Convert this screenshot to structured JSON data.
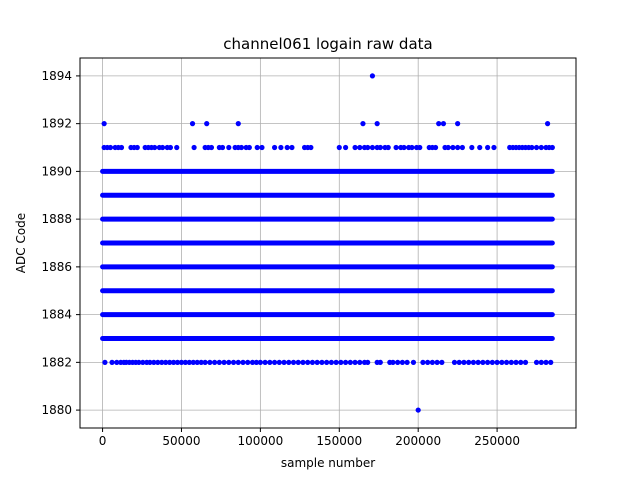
{
  "chart_data": {
    "type": "scatter",
    "title": "channel061 logain raw data",
    "xlabel": "sample number",
    "ylabel": "ADC Code",
    "xlim": [
      -14300,
      300000
    ],
    "ylim": [
      1879.25,
      1894.75
    ],
    "xticks": [
      0,
      50000,
      100000,
      150000,
      200000,
      250000
    ],
    "xtick_labels": [
      "0",
      "50000",
      "100000",
      "150000",
      "200000",
      "250000"
    ],
    "yticks": [
      1880,
      1882,
      1884,
      1886,
      1888,
      1890,
      1892,
      1894
    ],
    "ytick_labels": [
      "1880",
      "1882",
      "1884",
      "1886",
      "1888",
      "1890",
      "1892",
      "1894"
    ],
    "grid": true,
    "marker_color": "#0000ff",
    "x_extent": [
      0,
      285000
    ],
    "dense_levels": [
      1883,
      1884,
      1885,
      1886,
      1887,
      1888,
      1889,
      1890
    ],
    "sparse_levels": {
      "1882": [
        1500,
        6000,
        9000,
        11500,
        13500,
        15000,
        17000,
        19000,
        21000,
        23000,
        25500,
        28000,
        30000,
        32500,
        35000,
        37500,
        40000,
        42500,
        45000,
        47500,
        50000,
        52500,
        55000,
        57500,
        60000,
        62500,
        65000,
        68000,
        71000,
        74000,
        77000,
        80000,
        83000,
        86000,
        89000,
        92000,
        95000,
        97500,
        100000,
        103000,
        106000,
        109000,
        112000,
        115000,
        118000,
        121000,
        124000,
        127000,
        130000,
        133000,
        136000,
        139000,
        142000,
        145000,
        148000,
        151000,
        154000,
        157000,
        160000,
        163000,
        166000,
        168000,
        174000,
        176000,
        182000,
        184000,
        187000,
        190000,
        193000,
        197000,
        203000,
        206000,
        209000,
        212000,
        215000,
        223000,
        226000,
        229000,
        232000,
        235000,
        238000,
        241000,
        244000,
        247000,
        250000,
        253000,
        256000,
        259000,
        262000,
        265000,
        268000,
        275000,
        278000,
        281000,
        284000
      ],
      "1891": [
        1000,
        3000,
        5000,
        8000,
        10000,
        12000,
        18000,
        20000,
        22000,
        27000,
        29000,
        31000,
        33000,
        36000,
        38000,
        41000,
        43000,
        47000,
        58000,
        65000,
        67000,
        69000,
        74000,
        76000,
        80000,
        84000,
        86000,
        88000,
        91000,
        93000,
        98000,
        101000,
        109000,
        113000,
        117000,
        120000,
        128000,
        130000,
        132000,
        150000,
        154000,
        160000,
        163000,
        166000,
        168000,
        171000,
        174000,
        176000,
        179000,
        181000,
        186000,
        189000,
        191000,
        194000,
        196000,
        199000,
        201000,
        207000,
        209000,
        211000,
        217000,
        219000,
        222000,
        225000,
        228000,
        234000,
        239000,
        244000,
        248000,
        258000,
        260000,
        262000,
        264000,
        266000,
        268000,
        270000,
        272000,
        275000,
        278000,
        281000,
        283000,
        285000
      ],
      "1892": [
        1000,
        57000,
        66000,
        86000,
        165000,
        174000,
        213000,
        216000,
        225000,
        282000
      ],
      "1894": [
        171000
      ],
      "1880": [
        200000
      ]
    }
  }
}
